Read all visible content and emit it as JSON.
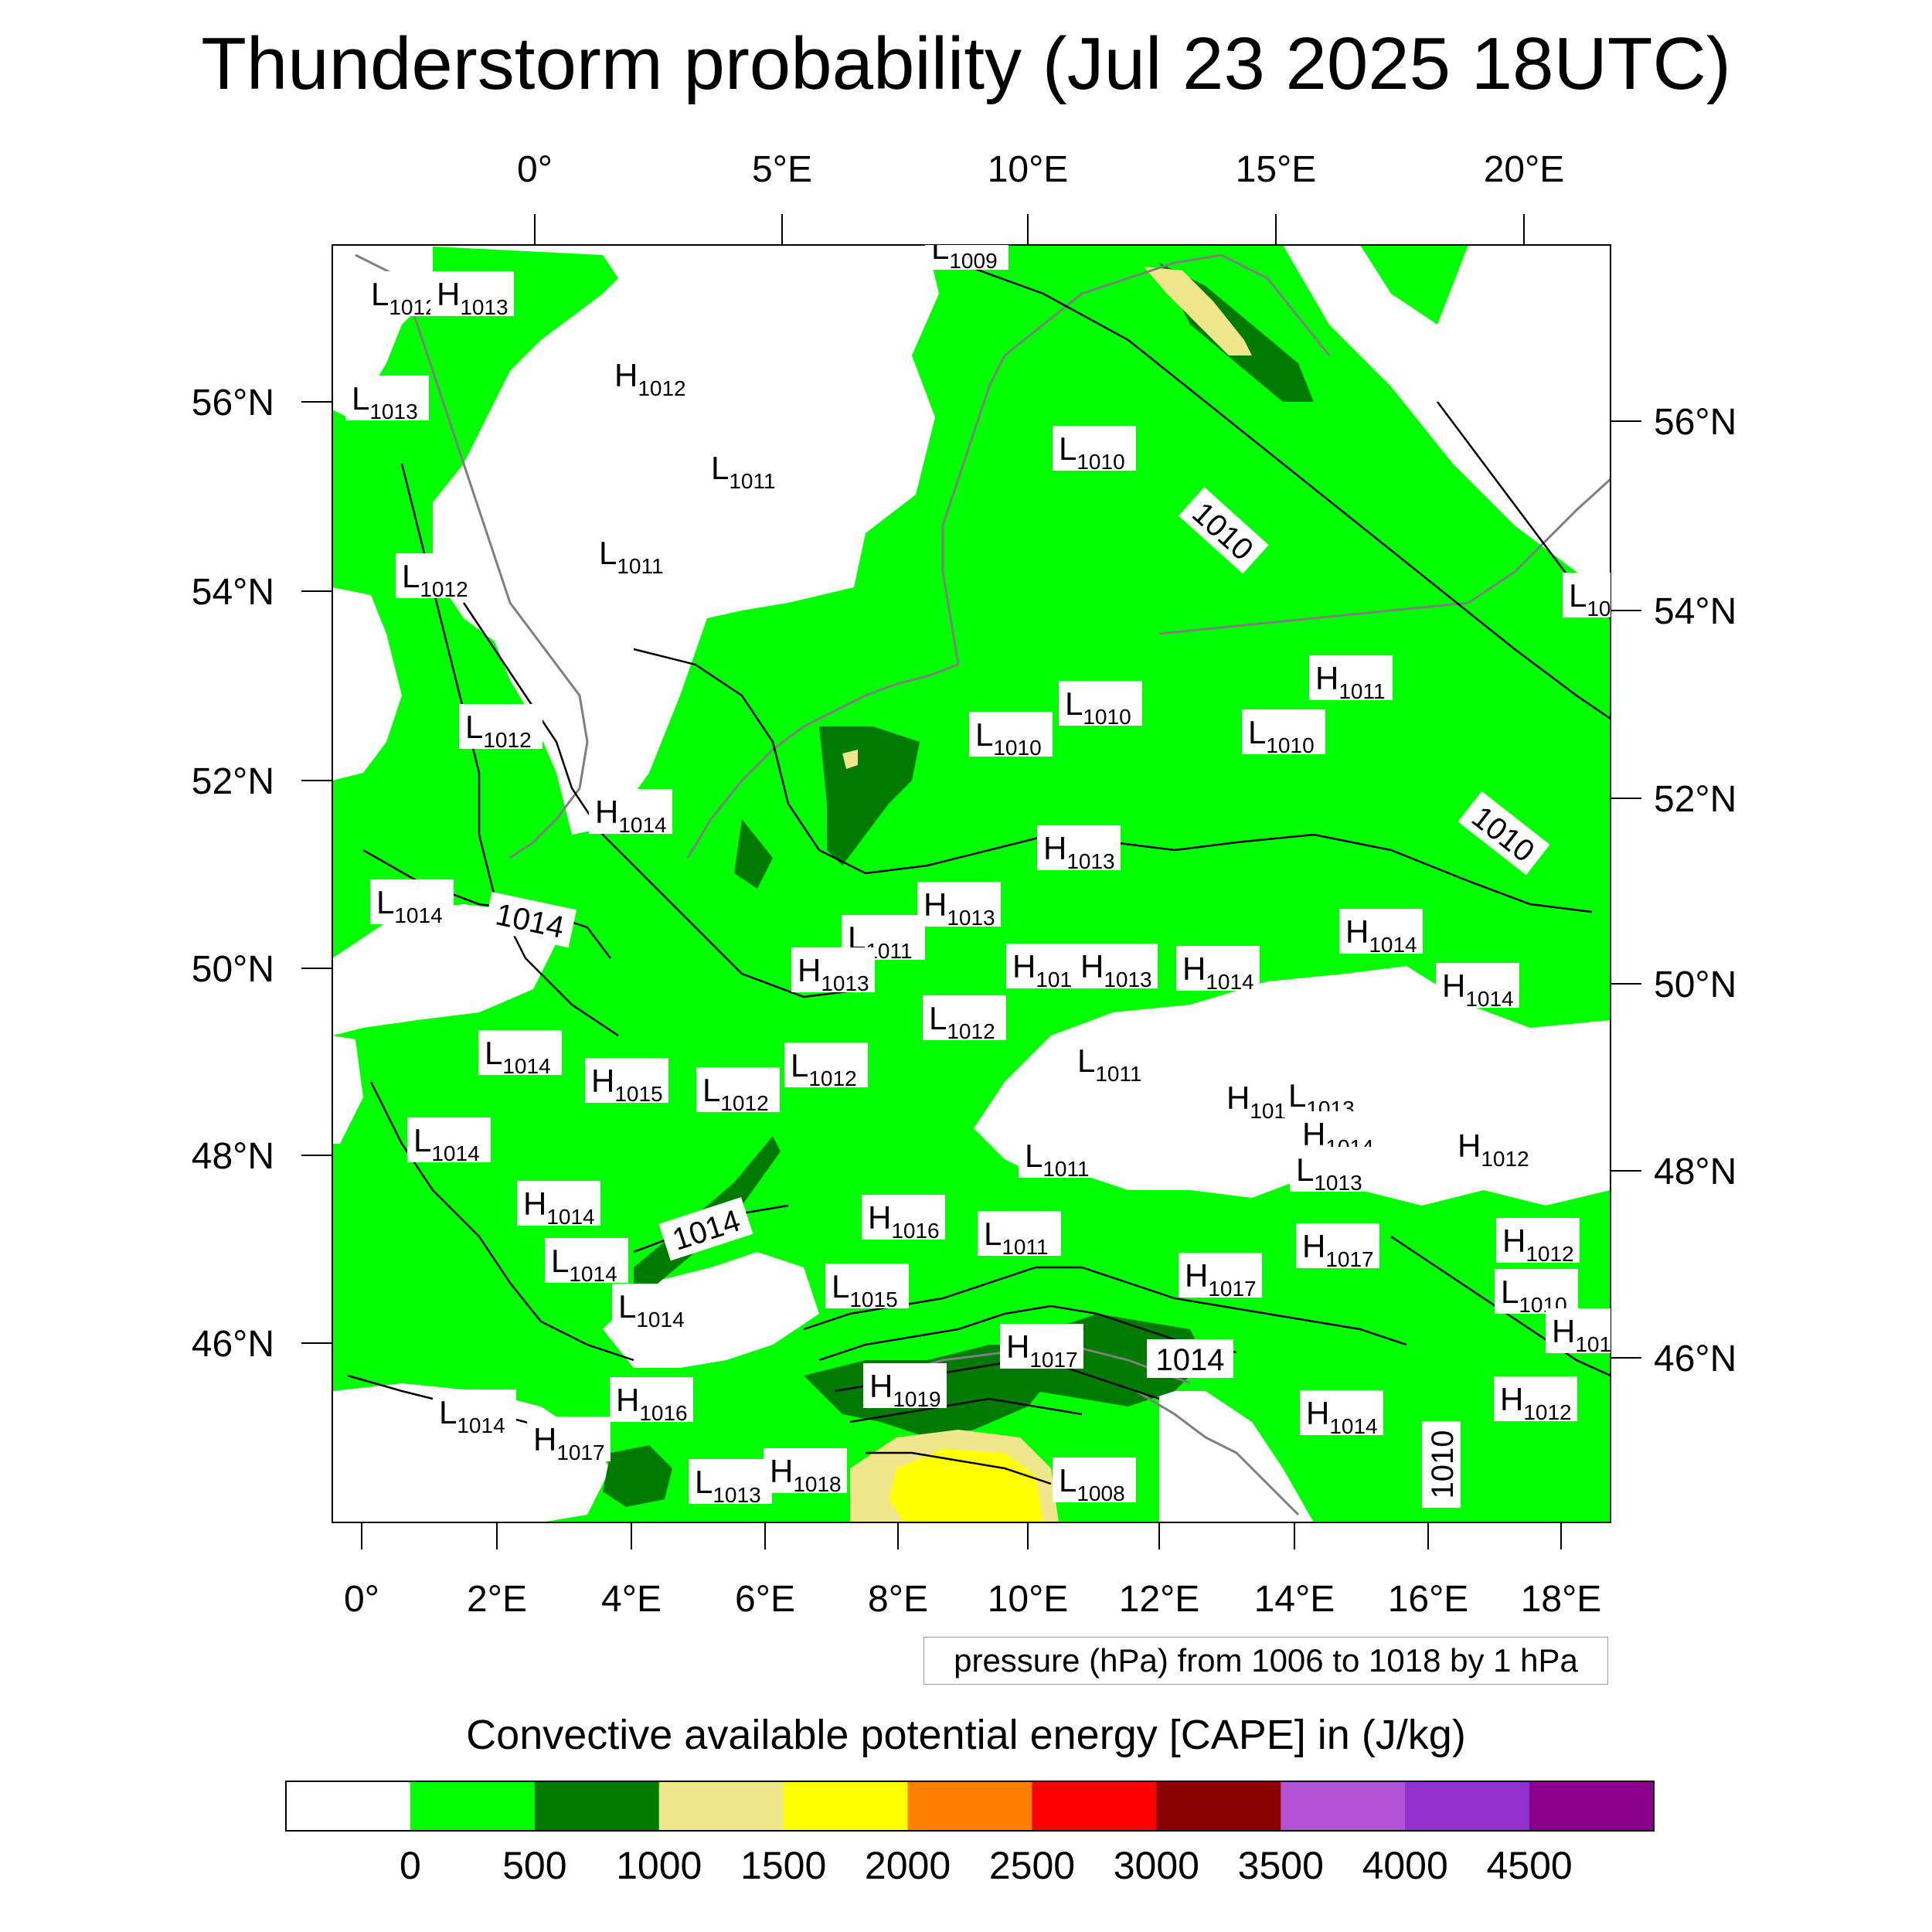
{
  "title": "Thunderstorm probability (Jul 23 2025 18UTC)",
  "axes": {
    "top_lon_labels": [
      "0°",
      "5°E",
      "10°E",
      "15°E",
      "20°E"
    ],
    "bottom_lon_labels": [
      "0°",
      "2°E",
      "4°E",
      "6°E",
      "8°E",
      "10°E",
      "12°E",
      "14°E",
      "16°E",
      "18°E"
    ],
    "left_lat_labels": [
      "56°N",
      "54°N",
      "52°N",
      "50°N",
      "48°N",
      "46°N"
    ],
    "right_lat_labels": [
      "56°N",
      "54°N",
      "52°N",
      "50°N",
      "48°N",
      "46°N"
    ]
  },
  "contour_info": "pressure (hPa) from 1006 to 1018 by 1 hPa",
  "pressure_centers": [
    {
      "type": "L",
      "value": "1012"
    },
    {
      "type": "H",
      "value": "1013"
    },
    {
      "type": "L",
      "value": "1009"
    },
    {
      "type": "L",
      "value": "1013"
    },
    {
      "type": "H",
      "value": "1012"
    },
    {
      "type": "L",
      "value": "1011"
    },
    {
      "type": "L",
      "value": "1010"
    },
    {
      "type": "L",
      "value": "1011"
    },
    {
      "type": "L",
      "value": "1012"
    },
    {
      "type": "L",
      "value": "10"
    },
    {
      "type": "H",
      "value": "1011"
    },
    {
      "type": "L",
      "value": "1010"
    },
    {
      "type": "L",
      "value": "1010"
    },
    {
      "type": "L",
      "value": "1012"
    },
    {
      "type": "L",
      "value": "1010"
    },
    {
      "type": "H",
      "value": "1014"
    },
    {
      "type": "H",
      "value": "1013"
    },
    {
      "type": "L",
      "value": "1014"
    },
    {
      "type": "H",
      "value": "1013"
    },
    {
      "type": "L",
      "value": "1011"
    },
    {
      "type": "H",
      "value": "1014"
    },
    {
      "type": "H",
      "value": "1013"
    },
    {
      "type": "H",
      "value": "101"
    },
    {
      "type": "H",
      "value": "1013"
    },
    {
      "type": "H",
      "value": "1014"
    },
    {
      "type": "H",
      "value": "1014"
    },
    {
      "type": "L",
      "value": "1012"
    },
    {
      "type": "L",
      "value": "1014"
    },
    {
      "type": "L",
      "value": "1012"
    },
    {
      "type": "H",
      "value": "1015"
    },
    {
      "type": "L",
      "value": "1012"
    },
    {
      "type": "L",
      "value": "1011"
    },
    {
      "type": "H",
      "value": "101"
    },
    {
      "type": "L",
      "value": "1013"
    },
    {
      "type": "L",
      "value": "1014"
    },
    {
      "type": "H",
      "value": "1014"
    },
    {
      "type": "H",
      "value": "1012"
    },
    {
      "type": "L",
      "value": "1011"
    },
    {
      "type": "L",
      "value": "1013"
    },
    {
      "type": "H",
      "value": "1014"
    },
    {
      "type": "H",
      "value": "1016"
    },
    {
      "type": "L",
      "value": "1011"
    },
    {
      "type": "H",
      "value": "1017"
    },
    {
      "type": "H",
      "value": "1012"
    },
    {
      "type": "L",
      "value": "1014"
    },
    {
      "type": "H",
      "value": "1017"
    },
    {
      "type": "L",
      "value": "1015"
    },
    {
      "type": "L",
      "value": "1010"
    },
    {
      "type": "L",
      "value": "1014"
    },
    {
      "type": "H",
      "value": "1017"
    },
    {
      "type": "H",
      "value": "101"
    },
    {
      "type": "H",
      "value": "1019"
    },
    {
      "type": "L",
      "value": "1014"
    },
    {
      "type": "H",
      "value": "1016"
    },
    {
      "type": "H",
      "value": "1012"
    },
    {
      "type": "H",
      "value": "1014"
    },
    {
      "type": "H",
      "value": "1017"
    },
    {
      "type": "H",
      "value": "1018"
    },
    {
      "type": "L",
      "value": "1013"
    },
    {
      "type": "L",
      "value": "1008"
    }
  ],
  "isobar_labels": [
    "1010",
    "1010",
    "1014",
    "1014",
    "1014",
    "1010"
  ],
  "colorbar": {
    "title": "Convective available potential energy [CAPE] in (J/kg)",
    "colors": [
      "#ffffff",
      "#00ff00",
      "#007a00",
      "#f0e68c",
      "#ffff00",
      "#ff8000",
      "#ff0000",
      "#8b0000",
      "#b452d6",
      "#9130cc",
      "#8b008b"
    ],
    "tick_labels": [
      "0",
      "500",
      "1000",
      "1500",
      "2000",
      "2500",
      "3000",
      "3500",
      "4000",
      "4500"
    ]
  }
}
